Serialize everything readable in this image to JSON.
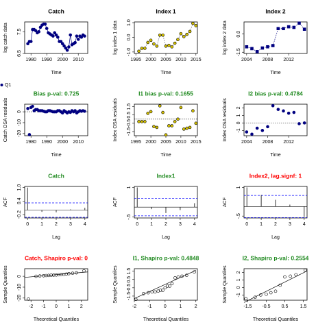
{
  "chart_data": [
    {
      "type": "line",
      "title": "Catch",
      "title_color": "#000000",
      "xlabel": "Time",
      "ylabel": "log catch data",
      "color": "#000080",
      "marker": "circle",
      "x": [
        1978,
        1979,
        1980,
        1981,
        1982,
        1983,
        1984,
        1985,
        1986,
        1987,
        1988,
        1989,
        1990,
        1991,
        1992,
        1993,
        1994,
        1995,
        1996,
        1997,
        1998,
        1999,
        2000,
        2001,
        2002,
        2003,
        2004,
        2005,
        2006,
        2007,
        2008,
        2009,
        2010,
        2011,
        2012,
        2013,
        2014
      ],
      "values": [
        6.95,
        7.05,
        7.05,
        7.6,
        7.6,
        7.55,
        7.45,
        7.5,
        7.7,
        7.8,
        7.85,
        7.85,
        7.65,
        7.45,
        7.4,
        7.35,
        7.3,
        7.45,
        7.35,
        7.25,
        7.05,
        7.05,
        6.95,
        6.85,
        6.75,
        6.65,
        6.8,
        7.35,
        6.9,
        6.95,
        7.0,
        7.3,
        7.15,
        7.3,
        7.25,
        7.35,
        7.3
      ],
      "xlim": [
        1976,
        2016
      ],
      "xticks": [
        1980,
        1990,
        2000,
        2010
      ],
      "ylim": [
        6.5,
        7.95
      ],
      "yticks": [
        6.5,
        7.5
      ]
    },
    {
      "type": "line",
      "title": "Index 1",
      "title_color": "#000000",
      "xlabel": "Time",
      "ylabel": "log index 1 data",
      "color": "#d4c000",
      "marker": "circle",
      "x": [
        1996,
        1997,
        1998,
        1999,
        2000,
        2001,
        2002,
        2003,
        2004,
        2005,
        2006,
        2007,
        2008,
        2009,
        2010,
        2011,
        2012,
        2013,
        2014,
        2015
      ],
      "values": [
        -0.95,
        -0.75,
        -0.75,
        -0.35,
        -0.2,
        -0.45,
        -0.6,
        0.15,
        0.15,
        -0.6,
        -0.55,
        -0.65,
        -0.4,
        -0.15,
        0.25,
        0.05,
        0.2,
        0.4,
        0.95,
        0.8
      ],
      "xlim": [
        1994.5,
        2015.5
      ],
      "xticks": [
        1995,
        2000,
        2005,
        2010,
        2015
      ],
      "ylim": [
        -1.1,
        1.05
      ],
      "yticks": [
        {
          "value": -1,
          "label": "-1.0"
        },
        {
          "value": 0,
          "label": "0.0"
        },
        {
          "value": 1,
          "label": "1.0"
        }
      ]
    },
    {
      "type": "line",
      "title": "Index 2",
      "title_color": "#000000",
      "xlabel": "Time",
      "ylabel": "log index 2 data",
      "color": "#000080",
      "marker": "square",
      "x": [
        2004,
        2005,
        2006,
        2007,
        2008,
        2009,
        2010,
        2011,
        2012,
        2013,
        2014,
        2015
      ],
      "values": [
        -1.05,
        -1.2,
        -1.45,
        -1.15,
        -1.05,
        -0.95,
        0.45,
        0.45,
        0.6,
        0.55,
        0.9,
        0.4
      ],
      "xlim": [
        2003.5,
        2015.5
      ],
      "xticks": [
        2004,
        2008,
        2012
      ],
      "ylim": [
        -1.6,
        1.0
      ],
      "yticks": [
        -1.5,
        {
          "value": 0,
          "label": "0.0"
        }
      ]
    },
    {
      "type": "residual",
      "title": "Bias p-val: 0.725",
      "title_color": "#228b22",
      "xlabel": "Time",
      "ylabel": "Catch OSA residuals",
      "color": "#000080",
      "name": "Q1",
      "x": [
        1978,
        1979,
        1980,
        1981,
        1982,
        1983,
        1984,
        1985,
        1986,
        1987,
        1988,
        1989,
        1990,
        1991,
        1992,
        1993,
        1994,
        1995,
        1996,
        1997,
        1998,
        1999,
        2000,
        2001,
        2002,
        2003,
        2004,
        2005,
        2006,
        2007,
        2008,
        2009,
        2010,
        2011,
        2012,
        2013,
        2014
      ],
      "values": [
        3,
        -21,
        4,
        5,
        1,
        2,
        2,
        1,
        1,
        1,
        0.5,
        0,
        0,
        1,
        1,
        0.5,
        0,
        0,
        0,
        1,
        1,
        0,
        -1,
        1,
        0,
        -1,
        0,
        -0.5,
        1,
        0,
        1,
        -1,
        0,
        1,
        0.5,
        1,
        0.5
      ],
      "xlim": [
        1976,
        2016
      ],
      "xticks": [
        1980,
        1990,
        2000,
        2010
      ],
      "ylim": [
        -22,
        7
      ],
      "yticks": [
        -20,
        -10,
        0
      ]
    },
    {
      "type": "residual",
      "title": "I1 bias p-val: 0.1655",
      "title_color": "#228b22",
      "xlabel": "Time",
      "ylabel": "Index OSA residuals",
      "color": "#d4c000",
      "x": [
        1996,
        1997,
        1998,
        1999,
        2000,
        2001,
        2002,
        2003,
        2004,
        2005,
        2006,
        2007,
        2008,
        2009,
        2010,
        2011,
        2012,
        2013,
        2014,
        2015
      ],
      "values": [
        -0.3,
        -0.3,
        -0.3,
        0.7,
        0.9,
        -0.9,
        -1.0,
        1.6,
        0.8,
        -1.9,
        -0.8,
        -0.8,
        -0.3,
        0.0,
        1.4,
        -1.2,
        -1.1,
        -1.0,
        1.0,
        -0.5
      ],
      "xlim": [
        1994.5,
        2015.5
      ],
      "xticks": [
        1995,
        2000,
        2005,
        2010,
        2015
      ],
      "ylim": [
        -2,
        1.8
      ],
      "yticks": [
        -1.5,
        -0.5,
        0.5,
        1.5
      ]
    },
    {
      "type": "residual",
      "title": "I2 bias p-val: 0.4784",
      "title_color": "#228b22",
      "xlabel": "Time",
      "ylabel": "Index OSA residuals",
      "color": "#000080",
      "x": [
        2004,
        2005,
        2006,
        2007,
        2008,
        2009,
        2010,
        2011,
        2012,
        2013,
        2014,
        2015
      ],
      "values": [
        -1.2,
        -1.5,
        -0.7,
        -1.0,
        -0.5,
        2.3,
        1.8,
        1.6,
        1.3,
        1.4,
        -0.1,
        0.0
      ],
      "xlim": [
        2003.5,
        2015.5
      ],
      "xticks": [
        2004,
        2008,
        2012
      ],
      "ylim": [
        -1.7,
        2.5
      ],
      "yticks": [
        -1,
        0,
        1,
        2
      ]
    },
    {
      "type": "acf",
      "title": "Catch",
      "title_color": "#228b22",
      "xlabel": "Lag",
      "ylabel": "ACF",
      "color": "#000000",
      "ci": 0.32,
      "x": [
        0,
        1,
        2,
        3,
        4
      ],
      "values": [
        1,
        -0.08,
        -0.1,
        0.03,
        0.1
      ],
      "xlim": [
        -0.2,
        4.2
      ],
      "xticks": [
        0,
        1,
        2,
        3,
        4
      ],
      "ylim": [
        -0.35,
        1.05
      ],
      "yticks": [
        -0.2,
        0.4,
        {
          "value": 1,
          "label": "1.0"
        }
      ]
    },
    {
      "type": "acf",
      "title": "Index1",
      "title_color": "#228b22",
      "xlabel": "Lag",
      "ylabel": "ACF",
      "color": "#000000",
      "ci": 0.44,
      "x": [
        0,
        1,
        2,
        3,
        4
      ],
      "values": [
        1,
        -0.1,
        -0.3,
        -0.15,
        0.2
      ],
      "xlim": [
        -0.2,
        4.2
      ],
      "xticks": [
        0,
        1,
        2,
        3,
        4
      ],
      "ylim": [
        -0.55,
        1.05
      ],
      "yticks": [
        {
          "value": -0.5,
          "label": "-.5"
        },
        1
      ]
    },
    {
      "type": "acf",
      "title": "Index2, lag.signf: 1",
      "title_color": "#ff0000",
      "xlabel": "Lag",
      "ylabel": "ACF",
      "color": "#000000",
      "ci": 0.58,
      "x": [
        0,
        1,
        2,
        3,
        4
      ],
      "values": [
        1,
        0.6,
        0.35,
        0.1,
        -0.55
      ],
      "xlim": [
        -0.2,
        4.2
      ],
      "xticks": [
        0,
        1,
        2,
        3,
        4
      ],
      "ylim": [
        -0.6,
        1.05
      ],
      "yticks": [
        {
          "value": -0.5,
          "label": "-.5"
        },
        1
      ]
    },
    {
      "type": "qq",
      "title": "Catch, Shapiro p-val: 0",
      "title_color": "#ff0000",
      "xlabel": "Theoretical Quantiles",
      "ylabel": "Sample Quantiles",
      "color": "#000000",
      "x": [
        -2.2,
        -1.6,
        -1.3,
        -1,
        -0.8,
        -0.6,
        -0.4,
        -0.2,
        0,
        0.2,
        0.4,
        0.6,
        0.8,
        1,
        1.3,
        1.6,
        2.2
      ],
      "values": [
        -21,
        0,
        0.3,
        0.5,
        0.7,
        0.8,
        1,
        1.1,
        1.2,
        1.4,
        1.6,
        1.8,
        2,
        2.4,
        2.8,
        3.2,
        5
      ],
      "line": {
        "x": [
          -2.5,
          2.5
        ],
        "y": [
          -1,
          4
        ]
      },
      "xlim": [
        -2.5,
        2.5
      ],
      "xticks": [
        -2,
        -1,
        0,
        1,
        2
      ],
      "ylim": [
        -22,
        7
      ],
      "yticks": [
        -20,
        -10,
        0
      ]
    },
    {
      "type": "qq",
      "title": "I1, Shapiro p-val: 0.4848",
      "title_color": "#228b22",
      "xlabel": "Theoretical Quantiles",
      "ylabel": "Sample Quantiles",
      "color": "#000000",
      "x": [
        -1.9,
        -1.4,
        -1.1,
        -0.85,
        -0.65,
        -0.45,
        -0.3,
        -0.15,
        0,
        0.15,
        0.3,
        0.45,
        0.65,
        0.85,
        1.1,
        1.4,
        1.9
      ],
      "values": [
        -1.9,
        -1.2,
        -1.1,
        -1.0,
        -1.0,
        -0.9,
        -0.8,
        -0.8,
        -0.5,
        -0.3,
        -0.3,
        0.0,
        0.7,
        0.8,
        0.9,
        1.0,
        1.4
      ],
      "line": {
        "x": [
          -2,
          2
        ],
        "y": [
          -1.8,
          1.6
        ]
      },
      "xlim": [
        -2,
        2.1
      ],
      "xticks": [
        -2,
        -1,
        0,
        1,
        2
      ],
      "ylim": [
        -2,
        1.8
      ],
      "yticks": [
        -1.5,
        -0.5,
        0.5,
        1.5
      ]
    },
    {
      "type": "qq",
      "title": "I2, Shapiro p-val: 0.2554",
      "title_color": "#228b22",
      "xlabel": "Theoretical Quantiles",
      "ylabel": "Sample Quantiles",
      "color": "#000000",
      "x": [
        -1.6,
        -1.1,
        -0.8,
        -0.5,
        -0.25,
        0,
        0.25,
        0.5,
        0.8,
        1.1,
        1.6
      ],
      "values": [
        -1.5,
        -1.3,
        -1.0,
        -0.9,
        -0.7,
        -0.5,
        0.3,
        1.4,
        1.5,
        1.7,
        2.3
      ],
      "line": {
        "x": [
          -1.7,
          1.7
        ],
        "y": [
          -2,
          2.2
        ]
      },
      "xlim": [
        -1.7,
        1.7
      ],
      "xticks": [
        -1.5,
        -0.5,
        0.5,
        1.5
      ],
      "ylim": [
        -1.7,
        2.5
      ],
      "yticks": [
        -1,
        0,
        1,
        2
      ]
    }
  ]
}
